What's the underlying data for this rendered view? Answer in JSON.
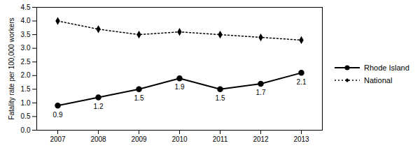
{
  "chart_data": {
    "type": "line",
    "y_label": "Fatality rate per 100,000 workers",
    "categories": [
      "2007",
      "2008",
      "2009",
      "2010",
      "2011",
      "2012",
      "2013"
    ],
    "series": [
      {
        "name": "Rhode Island",
        "color": "#000000",
        "marker": "circle",
        "line_style": "solid",
        "data_labels": true,
        "values": [
          0.9,
          1.2,
          1.5,
          1.9,
          1.5,
          1.7,
          2.1
        ]
      },
      {
        "name": "National",
        "color": "#000000",
        "marker": "diamond",
        "line_style": "dotted",
        "data_labels": false,
        "values": [
          4.0,
          3.7,
          3.5,
          3.6,
          3.5,
          3.4,
          3.3
        ]
      }
    ],
    "ylim": [
      0,
      4.5
    ],
    "yticks": [
      {
        "value": 0,
        "label": "0.0"
      },
      0.5,
      {
        "value": 1,
        "label": "1.0"
      },
      1.5,
      {
        "value": 2,
        "label": "2.0"
      },
      2.5,
      {
        "value": 3,
        "label": "3.0"
      },
      3.5,
      {
        "value": 4,
        "label": "4.0"
      },
      4.5
    ],
    "grid": false,
    "legend": "right"
  }
}
